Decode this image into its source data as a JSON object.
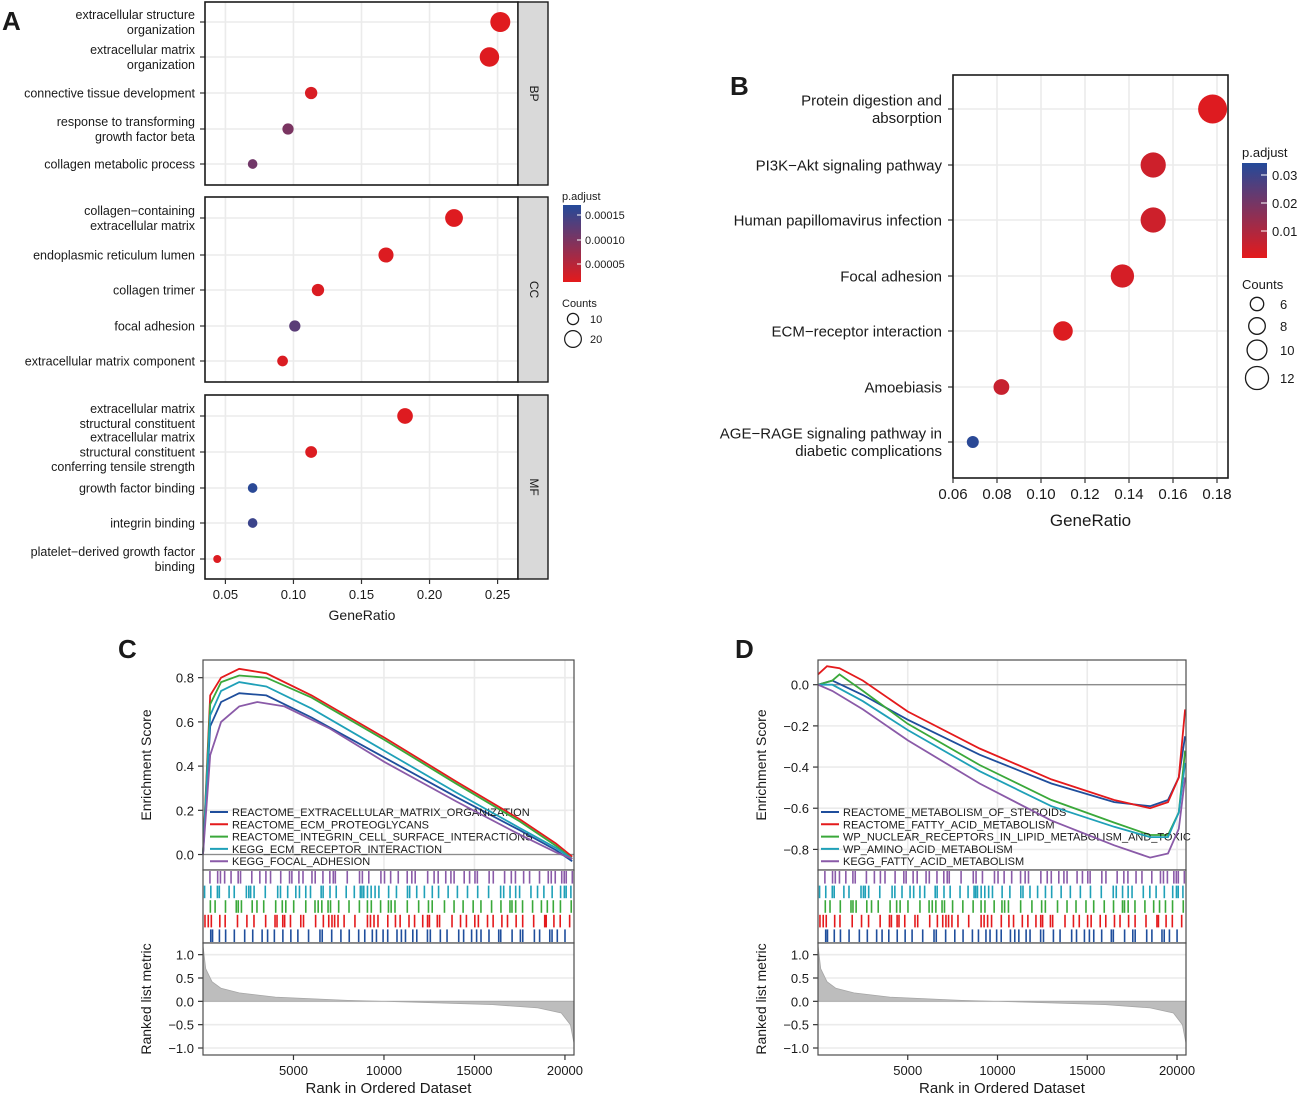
{
  "panels": {
    "a": "A",
    "b": "B",
    "c": "C",
    "d": "D"
  },
  "chart_data": [
    {
      "panel": "A",
      "type": "scatter",
      "subtype": "faceted-dotplot",
      "xlabel": "GeneRatio",
      "xlim": [
        0.035,
        0.265
      ],
      "xticks": [
        0.05,
        0.1,
        0.15,
        0.2,
        0.25
      ],
      "xtick_labels": [
        "0.05",
        "0.10",
        "0.15",
        "0.20",
        "0.25"
      ],
      "color_legend": {
        "title": "p.adjust",
        "ticks": [
          "0.00015",
          "0.00010",
          "0.00005"
        ],
        "low_color": "#e41a1c",
        "high_color": "#244a9a"
      },
      "size_legend": {
        "title": "Counts",
        "values": [
          10,
          20
        ],
        "labels": [
          "10",
          "20"
        ]
      },
      "facets": [
        {
          "name": "BP",
          "terms": [
            {
              "lines": [
                "extracellular structure",
                "organization"
              ],
              "gene_ratio": 0.252,
              "p_rel": 0.02,
              "count": 26
            },
            {
              "lines": [
                "extracellular matrix",
                "organization"
              ],
              "gene_ratio": 0.244,
              "p_rel": 0.03,
              "count": 25
            },
            {
              "lines": [
                "connective tissue development"
              ],
              "gene_ratio": 0.113,
              "p_rel": 0.06,
              "count": 12
            },
            {
              "lines": [
                "response to transforming",
                "growth factor beta"
              ],
              "gene_ratio": 0.096,
              "p_rel": 0.55,
              "count": 10
            },
            {
              "lines": [
                "collagen metabolic process"
              ],
              "gene_ratio": 0.07,
              "p_rel": 0.6,
              "count": 7
            }
          ]
        },
        {
          "name": "CC",
          "terms": [
            {
              "lines": [
                "collagen−containing",
                "extracellular matrix"
              ],
              "gene_ratio": 0.218,
              "p_rel": 0.03,
              "count": 22
            },
            {
              "lines": [
                "endoplasmic reticulum lumen"
              ],
              "gene_ratio": 0.168,
              "p_rel": 0.04,
              "count": 17
            },
            {
              "lines": [
                "collagen trimer"
              ],
              "gene_ratio": 0.118,
              "p_rel": 0.05,
              "count": 12
            },
            {
              "lines": [
                "focal adhesion"
              ],
              "gene_ratio": 0.101,
              "p_rel": 0.72,
              "count": 10
            },
            {
              "lines": [
                "extracellular matrix component"
              ],
              "gene_ratio": 0.092,
              "p_rel": 0.05,
              "count": 9
            }
          ]
        },
        {
          "name": "MF",
          "terms": [
            {
              "lines": [
                "extracellular matrix",
                "structural constituent"
              ],
              "gene_ratio": 0.182,
              "p_rel": 0.03,
              "count": 18
            },
            {
              "lines": [
                "extracellular matrix",
                "structural constituent",
                "conferring tensile strength"
              ],
              "gene_ratio": 0.113,
              "p_rel": 0.04,
              "count": 11
            },
            {
              "lines": [
                "growth factor binding"
              ],
              "gene_ratio": 0.07,
              "p_rel": 0.97,
              "count": 7
            },
            {
              "lines": [
                "integrin binding"
              ],
              "gene_ratio": 0.07,
              "p_rel": 0.88,
              "count": 7
            },
            {
              "lines": [
                "platelet−derived growth factor",
                "binding"
              ],
              "gene_ratio": 0.044,
              "p_rel": 0.04,
              "count": 4
            }
          ]
        }
      ]
    },
    {
      "panel": "B",
      "type": "scatter",
      "subtype": "dotplot",
      "xlabel": "GeneRatio",
      "xlim": [
        0.06,
        0.185
      ],
      "xticks": [
        0.06,
        0.08,
        0.1,
        0.12,
        0.14,
        0.16,
        0.18
      ],
      "xtick_labels": [
        "0.06",
        "0.08",
        "0.10",
        "0.12",
        "0.14",
        "0.16",
        "0.18"
      ],
      "color_legend": {
        "title": "p.adjust",
        "ticks": [
          "0.03",
          "0.02",
          "0.01"
        ],
        "low_color": "#e41a1c",
        "high_color": "#244a9a"
      },
      "size_legend": {
        "title": "Counts",
        "values": [
          6,
          8,
          10,
          12
        ],
        "labels": [
          "6",
          "8",
          "10",
          "12"
        ]
      },
      "terms": [
        {
          "lines": [
            "Protein digestion and",
            "absorption"
          ],
          "gene_ratio": 0.178,
          "p_rel": 0.03,
          "count": 13
        },
        {
          "lines": [
            "PI3K−Akt signaling pathway"
          ],
          "gene_ratio": 0.151,
          "p_rel": 0.12,
          "count": 11
        },
        {
          "lines": [
            "Human papillomavirus infection"
          ],
          "gene_ratio": 0.151,
          "p_rel": 0.12,
          "count": 11
        },
        {
          "lines": [
            "Focal adhesion"
          ],
          "gene_ratio": 0.137,
          "p_rel": 0.08,
          "count": 10
        },
        {
          "lines": [
            "ECM−receptor interaction"
          ],
          "gene_ratio": 0.11,
          "p_rel": 0.04,
          "count": 8
        },
        {
          "lines": [
            "Amoebiasis"
          ],
          "gene_ratio": 0.082,
          "p_rel": 0.15,
          "count": 6
        },
        {
          "lines": [
            "AGE−RAGE signaling pathway in",
            "diabetic complications"
          ],
          "gene_ratio": 0.069,
          "p_rel": 0.97,
          "count": 4
        }
      ]
    },
    {
      "panel": "C",
      "type": "line",
      "subtype": "gsea",
      "ylabel_top": "Enrichment Score",
      "ylabel_bottom": "Ranked list metric",
      "xlabel": "Rank in Ordered Dataset",
      "xlim": [
        1,
        20500
      ],
      "xticks": [
        5000,
        10000,
        15000,
        20000
      ],
      "xtick_labels": [
        "5000",
        "10000",
        "15000",
        "20000"
      ],
      "es_ylim": [
        -0.07,
        0.88
      ],
      "es_yticks": [
        0.0,
        0.2,
        0.4,
        0.6,
        0.8
      ],
      "es_ytick_labels": [
        "0.0",
        "0.2",
        "0.4",
        "0.6",
        "0.8"
      ],
      "metric_ylim": [
        -1.15,
        1.25
      ],
      "metric_yticks": [
        -1.0,
        -0.5,
        0.0,
        0.5,
        1.0
      ],
      "metric_ytick_labels": [
        "−1.0",
        "−0.5",
        "0.0",
        "0.5",
        "1.0"
      ],
      "series": [
        {
          "name": "REACTOME_EXTRACELLULAR_MATRIX_ORGANIZATION",
          "color": "#1f4e9c",
          "x": [
            1,
            400,
            1000,
            2000,
            3500,
            6000,
            10000,
            14000,
            17500,
            19500,
            20400
          ],
          "y": [
            0.0,
            0.58,
            0.69,
            0.73,
            0.72,
            0.62,
            0.44,
            0.26,
            0.11,
            0.02,
            -0.03
          ]
        },
        {
          "name": "REACTOME_ECM_PROTEOGLYCANS",
          "color": "#e41a1c",
          "x": [
            1,
            400,
            1000,
            2000,
            3500,
            6000,
            10000,
            14000,
            17500,
            19500,
            20400
          ],
          "y": [
            0.0,
            0.72,
            0.8,
            0.84,
            0.82,
            0.72,
            0.53,
            0.33,
            0.16,
            0.05,
            -0.01
          ]
        },
        {
          "name": "REACTOME_INTEGRIN_CELL_SURFACE_INTERACTIONS",
          "color": "#3aa83a",
          "x": [
            1,
            400,
            1000,
            2000,
            3500,
            6000,
            10000,
            14000,
            17500,
            19500,
            20400
          ],
          "y": [
            0.0,
            0.68,
            0.78,
            0.81,
            0.8,
            0.71,
            0.52,
            0.32,
            0.15,
            0.04,
            -0.02
          ]
        },
        {
          "name": "KEGG_ECM_RECEPTOR_INTERACTION",
          "color": "#1fa0b8",
          "x": [
            1,
            400,
            1000,
            2000,
            3500,
            6000,
            10000,
            14000,
            17500,
            19500,
            20400
          ],
          "y": [
            0.0,
            0.63,
            0.74,
            0.78,
            0.76,
            0.66,
            0.47,
            0.28,
            0.12,
            0.03,
            -0.02
          ]
        },
        {
          "name": "KEGG_FOCAL_ADHESION",
          "color": "#8a5aa8",
          "x": [
            1,
            400,
            1000,
            2000,
            3000,
            4500,
            7000,
            10000,
            14000,
            17500,
            19500,
            20400
          ],
          "y": [
            0.0,
            0.45,
            0.6,
            0.67,
            0.69,
            0.67,
            0.57,
            0.42,
            0.24,
            0.09,
            0.01,
            -0.02
          ]
        }
      ],
      "metric": {
        "x": [
          1,
          150,
          500,
          1000,
          2000,
          4000,
          8000,
          12000,
          16000,
          18500,
          19800,
          20300,
          20500
        ],
        "y": [
          1.2,
          0.7,
          0.42,
          0.28,
          0.18,
          0.09,
          0.02,
          -0.02,
          -0.07,
          -0.14,
          -0.25,
          -0.5,
          -0.9
        ]
      }
    },
    {
      "panel": "D",
      "type": "line",
      "subtype": "gsea",
      "ylabel_top": "Enrichment Score",
      "ylabel_bottom": "Ranked list metric",
      "xlabel": "Rank in Ordered Dataset",
      "xlim": [
        1,
        20500
      ],
      "xticks": [
        5000,
        10000,
        15000,
        20000
      ],
      "xtick_labels": [
        "5000",
        "10000",
        "15000",
        "20000"
      ],
      "es_ylim": [
        -0.9,
        0.12
      ],
      "es_yticks": [
        -0.8,
        -0.6,
        -0.4,
        -0.2,
        0.0
      ],
      "es_ytick_labels": [
        "−0.8",
        "−0.6",
        "−0.4",
        "−0.2",
        "0.0"
      ],
      "metric_ylim": [
        -1.15,
        1.25
      ],
      "metric_yticks": [
        -1.0,
        -0.5,
        0.0,
        0.5,
        1.0
      ],
      "metric_ytick_labels": [
        "−1.0",
        "−0.5",
        "0.0",
        "0.5",
        "1.0"
      ],
      "series": [
        {
          "name": "REACTOME_METABOLISM_OF_STEROIDS",
          "color": "#1f4e9c",
          "x": [
            1,
            800,
            2500,
            5000,
            9000,
            13000,
            16500,
            18500,
            19500,
            20100,
            20450
          ],
          "y": [
            0.0,
            0.02,
            -0.05,
            -0.17,
            -0.34,
            -0.48,
            -0.57,
            -0.59,
            -0.56,
            -0.45,
            -0.25
          ]
        },
        {
          "name": "REACTOME_FATTY_ACID_METABOLISM",
          "color": "#e41a1c",
          "x": [
            1,
            500,
            1200,
            2500,
            5000,
            9000,
            13000,
            16500,
            18500,
            19500,
            20100,
            20450
          ],
          "y": [
            0.05,
            0.09,
            0.08,
            0.02,
            -0.13,
            -0.31,
            -0.46,
            -0.56,
            -0.6,
            -0.57,
            -0.45,
            -0.12
          ]
        },
        {
          "name": "WP_NUCLEAR_RECEPTORS_IN_LIPID_METABOLISM_AND_TOXIC",
          "color": "#3aa83a",
          "x": [
            1,
            800,
            1200,
            2500,
            5000,
            9000,
            13000,
            16500,
            18500,
            19500,
            20100,
            20450
          ],
          "y": [
            0.0,
            0.02,
            0.05,
            -0.03,
            -0.19,
            -0.39,
            -0.56,
            -0.67,
            -0.73,
            -0.73,
            -0.62,
            -0.32
          ]
        },
        {
          "name": "WP_AMINO_ACID_METABOLISM",
          "color": "#1fa0b8",
          "x": [
            1,
            800,
            2500,
            5000,
            9000,
            13000,
            16500,
            18500,
            19500,
            20100,
            20450
          ],
          "y": [
            0.0,
            0.0,
            -0.08,
            -0.22,
            -0.42,
            -0.59,
            -0.69,
            -0.74,
            -0.74,
            -0.62,
            -0.38
          ]
        },
        {
          "name": "KEGG_FATTY_ACID_METABOLISM",
          "color": "#8a5aa8",
          "x": [
            1,
            800,
            2500,
            5000,
            9000,
            13000,
            16500,
            18500,
            19500,
            20100,
            20450
          ],
          "y": [
            0.0,
            -0.03,
            -0.12,
            -0.27,
            -0.48,
            -0.66,
            -0.78,
            -0.84,
            -0.82,
            -0.7,
            -0.45
          ]
        }
      ],
      "metric": {
        "x": [
          1,
          150,
          500,
          1000,
          2000,
          4000,
          8000,
          12000,
          16000,
          18500,
          19800,
          20300,
          20500
        ],
        "y": [
          1.2,
          0.7,
          0.42,
          0.28,
          0.18,
          0.09,
          0.02,
          -0.02,
          -0.07,
          -0.14,
          -0.25,
          -0.5,
          -0.9
        ]
      }
    }
  ]
}
